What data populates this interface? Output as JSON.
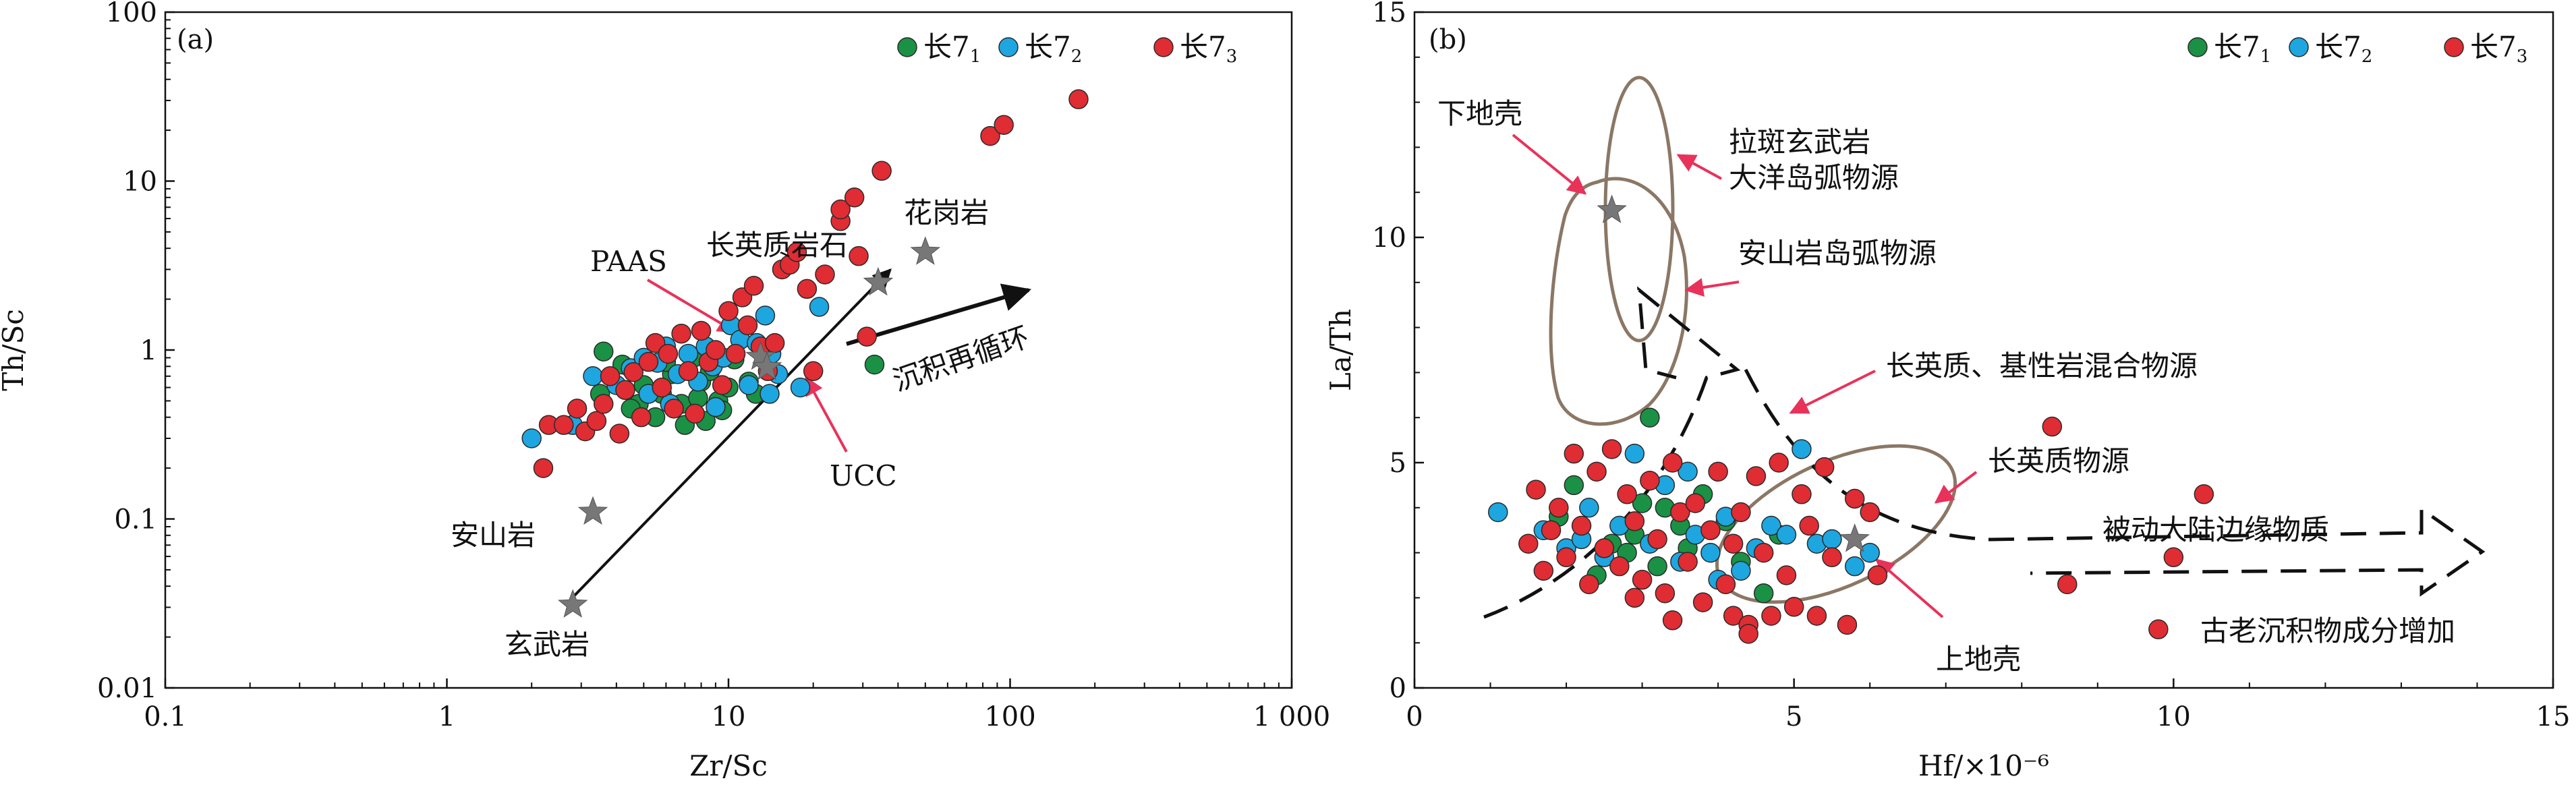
{
  "colors": {
    "c1": "#1a9144",
    "c2": "#1ea6e0",
    "c3": "#e02c33",
    "star": "#777777",
    "ellipse": "#8b7765",
    "pointer": "#e8325a",
    "edge": "#2a2a2a"
  },
  "chart_data": [
    {
      "type": "scatter",
      "panel_label": "(a)",
      "xlabel": "Zr/Sc",
      "ylabel": "Th/Sc",
      "xscale": "log",
      "yscale": "log",
      "xlim": [
        0.1,
        1000
      ],
      "ylim": [
        0.01,
        100
      ],
      "xticks": [
        0.1,
        1,
        10,
        100,
        1000
      ],
      "xtick_labels": [
        "0.1",
        "1",
        "10",
        "100",
        "1 000"
      ],
      "yticks": [
        0.01,
        0.1,
        1,
        10,
        100
      ],
      "ytick_labels": [
        "0.01",
        "0.1",
        "1",
        "10",
        "100"
      ],
      "legend_placement": "top-right",
      "series": [
        {
          "name": "长7₁",
          "base": "长7",
          "sub": "1",
          "color": "#1a9144",
          "points": [
            [
              3.6,
              0.98
            ],
            [
              4.2,
              0.82
            ],
            [
              5.0,
              0.62
            ],
            [
              5.8,
              0.55
            ],
            [
              6.3,
              0.72
            ],
            [
              6.8,
              0.48
            ],
            [
              7.5,
              0.9
            ],
            [
              8.0,
              0.65
            ],
            [
              8.6,
              0.75
            ],
            [
              9.2,
              0.5
            ],
            [
              10.0,
              0.6
            ],
            [
              10.5,
              0.88
            ],
            [
              11.8,
              0.65
            ],
            [
              12.5,
              0.55
            ],
            [
              4.8,
              0.48
            ],
            [
              5.5,
              0.4
            ],
            [
              7.0,
              0.36
            ],
            [
              8.3,
              0.38
            ],
            [
              9.5,
              0.44
            ],
            [
              6.0,
              0.85
            ],
            [
              3.5,
              0.55
            ],
            [
              4.5,
              0.45
            ],
            [
              7.8,
              0.52
            ],
            [
              33,
              0.82
            ]
          ]
        },
        {
          "name": "长7₂",
          "base": "长7",
          "sub": "2",
          "color": "#1ea6e0",
          "points": [
            [
              2.0,
              0.3
            ],
            [
              2.8,
              0.36
            ],
            [
              3.3,
              0.7
            ],
            [
              4.0,
              0.62
            ],
            [
              4.5,
              0.78
            ],
            [
              5.0,
              0.9
            ],
            [
              5.6,
              0.84
            ],
            [
              6.0,
              1.05
            ],
            [
              6.6,
              0.72
            ],
            [
              7.2,
              0.95
            ],
            [
              7.8,
              0.65
            ],
            [
              8.3,
              1.05
            ],
            [
              8.8,
              0.8
            ],
            [
              9.6,
              0.9
            ],
            [
              10.2,
              1.4
            ],
            [
              11.0,
              1.15
            ],
            [
              11.8,
              0.62
            ],
            [
              12.6,
              1.1
            ],
            [
              13.5,
              1.6
            ],
            [
              14.2,
              0.95
            ],
            [
              15.0,
              0.72
            ],
            [
              21,
              1.8
            ],
            [
              18,
              0.6
            ],
            [
              5.2,
              0.55
            ],
            [
              6.2,
              0.48
            ],
            [
              9.0,
              0.46
            ],
            [
              14.0,
              0.55
            ]
          ]
        },
        {
          "name": "长7₃",
          "base": "长7",
          "sub": "3",
          "color": "#e02c33",
          "points": [
            [
              2.2,
              0.2
            ],
            [
              2.3,
              0.36
            ],
            [
              2.6,
              0.36
            ],
            [
              2.9,
              0.45
            ],
            [
              3.1,
              0.33
            ],
            [
              3.4,
              0.38
            ],
            [
              3.6,
              0.48
            ],
            [
              3.8,
              0.7
            ],
            [
              4.1,
              0.32
            ],
            [
              4.3,
              0.58
            ],
            [
              4.6,
              0.74
            ],
            [
              4.9,
              0.4
            ],
            [
              5.2,
              0.85
            ],
            [
              5.5,
              1.1
            ],
            [
              5.8,
              0.6
            ],
            [
              6.1,
              0.95
            ],
            [
              6.4,
              0.45
            ],
            [
              6.8,
              1.25
            ],
            [
              7.2,
              0.75
            ],
            [
              7.6,
              0.42
            ],
            [
              8.0,
              1.3
            ],
            [
              8.5,
              0.85
            ],
            [
              9.0,
              1.0
            ],
            [
              9.5,
              0.62
            ],
            [
              10.0,
              1.7
            ],
            [
              10.6,
              0.95
            ],
            [
              11.2,
              2.05
            ],
            [
              11.7,
              1.4
            ],
            [
              12.3,
              2.4
            ],
            [
              13.0,
              1.05
            ],
            [
              13.8,
              0.75
            ],
            [
              14.6,
              1.1
            ],
            [
              15.5,
              3.0
            ],
            [
              16.5,
              3.2
            ],
            [
              17.5,
              3.8
            ],
            [
              19.0,
              2.3
            ],
            [
              20.0,
              0.75
            ],
            [
              22.0,
              2.8
            ],
            [
              25.0,
              5.8
            ],
            [
              25.0,
              6.8
            ],
            [
              28.0,
              8.0
            ],
            [
              29.0,
              3.6
            ],
            [
              31.0,
              1.2
            ],
            [
              35.0,
              11.5
            ],
            [
              85.0,
              18.5
            ],
            [
              95.0,
              21.5
            ],
            [
              175.0,
              30.5
            ]
          ]
        }
      ],
      "reference_points": [
        {
          "name": "PAAS",
          "x": 13.0,
          "y": 0.91
        },
        {
          "name": "UCC",
          "x": 13.7,
          "y": 0.79
        },
        {
          "name": "长英质岩石",
          "x": 34.0,
          "y": 2.5
        },
        {
          "name": "花岗岩",
          "x": 50.0,
          "y": 3.8
        },
        {
          "name": "安山岩",
          "x": 3.3,
          "y": 0.11
        },
        {
          "name": "玄武岩",
          "x": 2.8,
          "y": 0.031
        }
      ],
      "annotations": [
        {
          "text": "沉积再循环"
        }
      ]
    },
    {
      "type": "scatter",
      "panel_label": "(b)",
      "xlabel": "Hf/×10⁻⁶",
      "ylabel": "La/Th",
      "xscale": "linear",
      "yscale": "linear",
      "xlim": [
        0,
        15
      ],
      "ylim": [
        0,
        15
      ],
      "xticks": [
        0,
        5,
        10,
        15
      ],
      "yticks": [
        0,
        5,
        10,
        15
      ],
      "legend_placement": "top-right",
      "series": [
        {
          "name": "长7₁",
          "base": "长7",
          "sub": "1",
          "color": "#1a9144",
          "points": [
            [
              1.9,
              3.8
            ],
            [
              2.1,
              4.5
            ],
            [
              2.6,
              3.2
            ],
            [
              2.9,
              3.4
            ],
            [
              3.0,
              4.1
            ],
            [
              3.3,
              4.0
            ],
            [
              3.6,
              3.1
            ],
            [
              3.8,
              4.3
            ],
            [
              4.1,
              3.7
            ],
            [
              4.3,
              2.8
            ],
            [
              4.8,
              3.4
            ],
            [
              3.2,
              2.7
            ],
            [
              2.4,
              2.5
            ],
            [
              3.1,
              6.0
            ],
            [
              2.8,
              3.0
            ],
            [
              4.6,
              2.1
            ],
            [
              3.5,
              3.6
            ]
          ]
        },
        {
          "name": "长7₂",
          "base": "长7",
          "sub": "2",
          "color": "#1ea6e0",
          "points": [
            [
              1.1,
              3.9
            ],
            [
              1.7,
              3.5
            ],
            [
              2.0,
              3.1
            ],
            [
              2.3,
              4.0
            ],
            [
              2.5,
              2.9
            ],
            [
              2.7,
              3.6
            ],
            [
              2.9,
              5.2
            ],
            [
              3.1,
              3.2
            ],
            [
              3.3,
              4.5
            ],
            [
              3.5,
              2.8
            ],
            [
              3.7,
              3.4
            ],
            [
              3.9,
              3.0
            ],
            [
              4.1,
              3.8
            ],
            [
              4.3,
              2.6
            ],
            [
              4.5,
              3.1
            ],
            [
              4.7,
              3.6
            ],
            [
              4.9,
              3.4
            ],
            [
              5.1,
              5.3
            ],
            [
              5.3,
              3.2
            ],
            [
              5.5,
              3.3
            ],
            [
              5.8,
              2.7
            ],
            [
              6.0,
              3.0
            ],
            [
              3.6,
              4.8
            ],
            [
              2.2,
              3.3
            ],
            [
              4.0,
              2.4
            ]
          ]
        },
        {
          "name": "长7₃",
          "base": "长7",
          "sub": "3",
          "color": "#e02c33",
          "points": [
            [
              1.5,
              3.2
            ],
            [
              1.6,
              4.4
            ],
            [
              1.7,
              2.6
            ],
            [
              1.8,
              3.5
            ],
            [
              1.9,
              4.0
            ],
            [
              2.0,
              2.9
            ],
            [
              2.1,
              5.2
            ],
            [
              2.2,
              3.6
            ],
            [
              2.3,
              2.3
            ],
            [
              2.4,
              4.8
            ],
            [
              2.5,
              3.1
            ],
            [
              2.6,
              5.3
            ],
            [
              2.7,
              2.7
            ],
            [
              2.8,
              4.3
            ],
            [
              2.9,
              3.7
            ],
            [
              3.0,
              2.4
            ],
            [
              3.1,
              4.6
            ],
            [
              3.2,
              3.3
            ],
            [
              3.3,
              2.1
            ],
            [
              3.4,
              5.0
            ],
            [
              3.5,
              3.9
            ],
            [
              3.6,
              2.8
            ],
            [
              3.7,
              4.1
            ],
            [
              3.8,
              1.9
            ],
            [
              3.9,
              3.5
            ],
            [
              4.0,
              4.8
            ],
            [
              4.1,
              2.3
            ],
            [
              4.2,
              1.6
            ],
            [
              4.3,
              3.9
            ],
            [
              4.4,
              1.4
            ],
            [
              4.5,
              4.7
            ],
            [
              4.6,
              3.0
            ],
            [
              4.7,
              1.6
            ],
            [
              4.8,
              5.0
            ],
            [
              4.9,
              2.5
            ],
            [
              5.0,
              1.8
            ],
            [
              5.1,
              4.3
            ],
            [
              5.2,
              3.6
            ],
            [
              5.3,
              1.6
            ],
            [
              5.4,
              4.9
            ],
            [
              5.5,
              2.9
            ],
            [
              5.7,
              1.4
            ],
            [
              5.8,
              4.2
            ],
            [
              6.0,
              3.9
            ],
            [
              6.1,
              2.5
            ],
            [
              2.9,
              2.0
            ],
            [
              3.4,
              1.5
            ],
            [
              4.4,
              1.2
            ],
            [
              4.2,
              3.2
            ],
            [
              8.4,
              5.8
            ],
            [
              8.6,
              2.3
            ],
            [
              10.0,
              2.9
            ],
            [
              10.4,
              4.3
            ],
            [
              9.8,
              1.3
            ]
          ]
        }
      ],
      "reference_points": [
        {
          "name": "下地壳",
          "x": 2.6,
          "y": 10.6
        },
        {
          "name": "上地壳",
          "x": 5.8,
          "y": 3.3
        }
      ],
      "annotations": [
        {
          "text": "拉斑玄武岩"
        },
        {
          "text": "大洋岛弧物源"
        },
        {
          "text": "安山岩岛弧物源"
        },
        {
          "text": "长英质、基性岩混合物源"
        },
        {
          "text": "长英质物源"
        },
        {
          "text": "被动大陆边缘物质"
        },
        {
          "text": "古老沉积物成分增加"
        }
      ]
    }
  ]
}
